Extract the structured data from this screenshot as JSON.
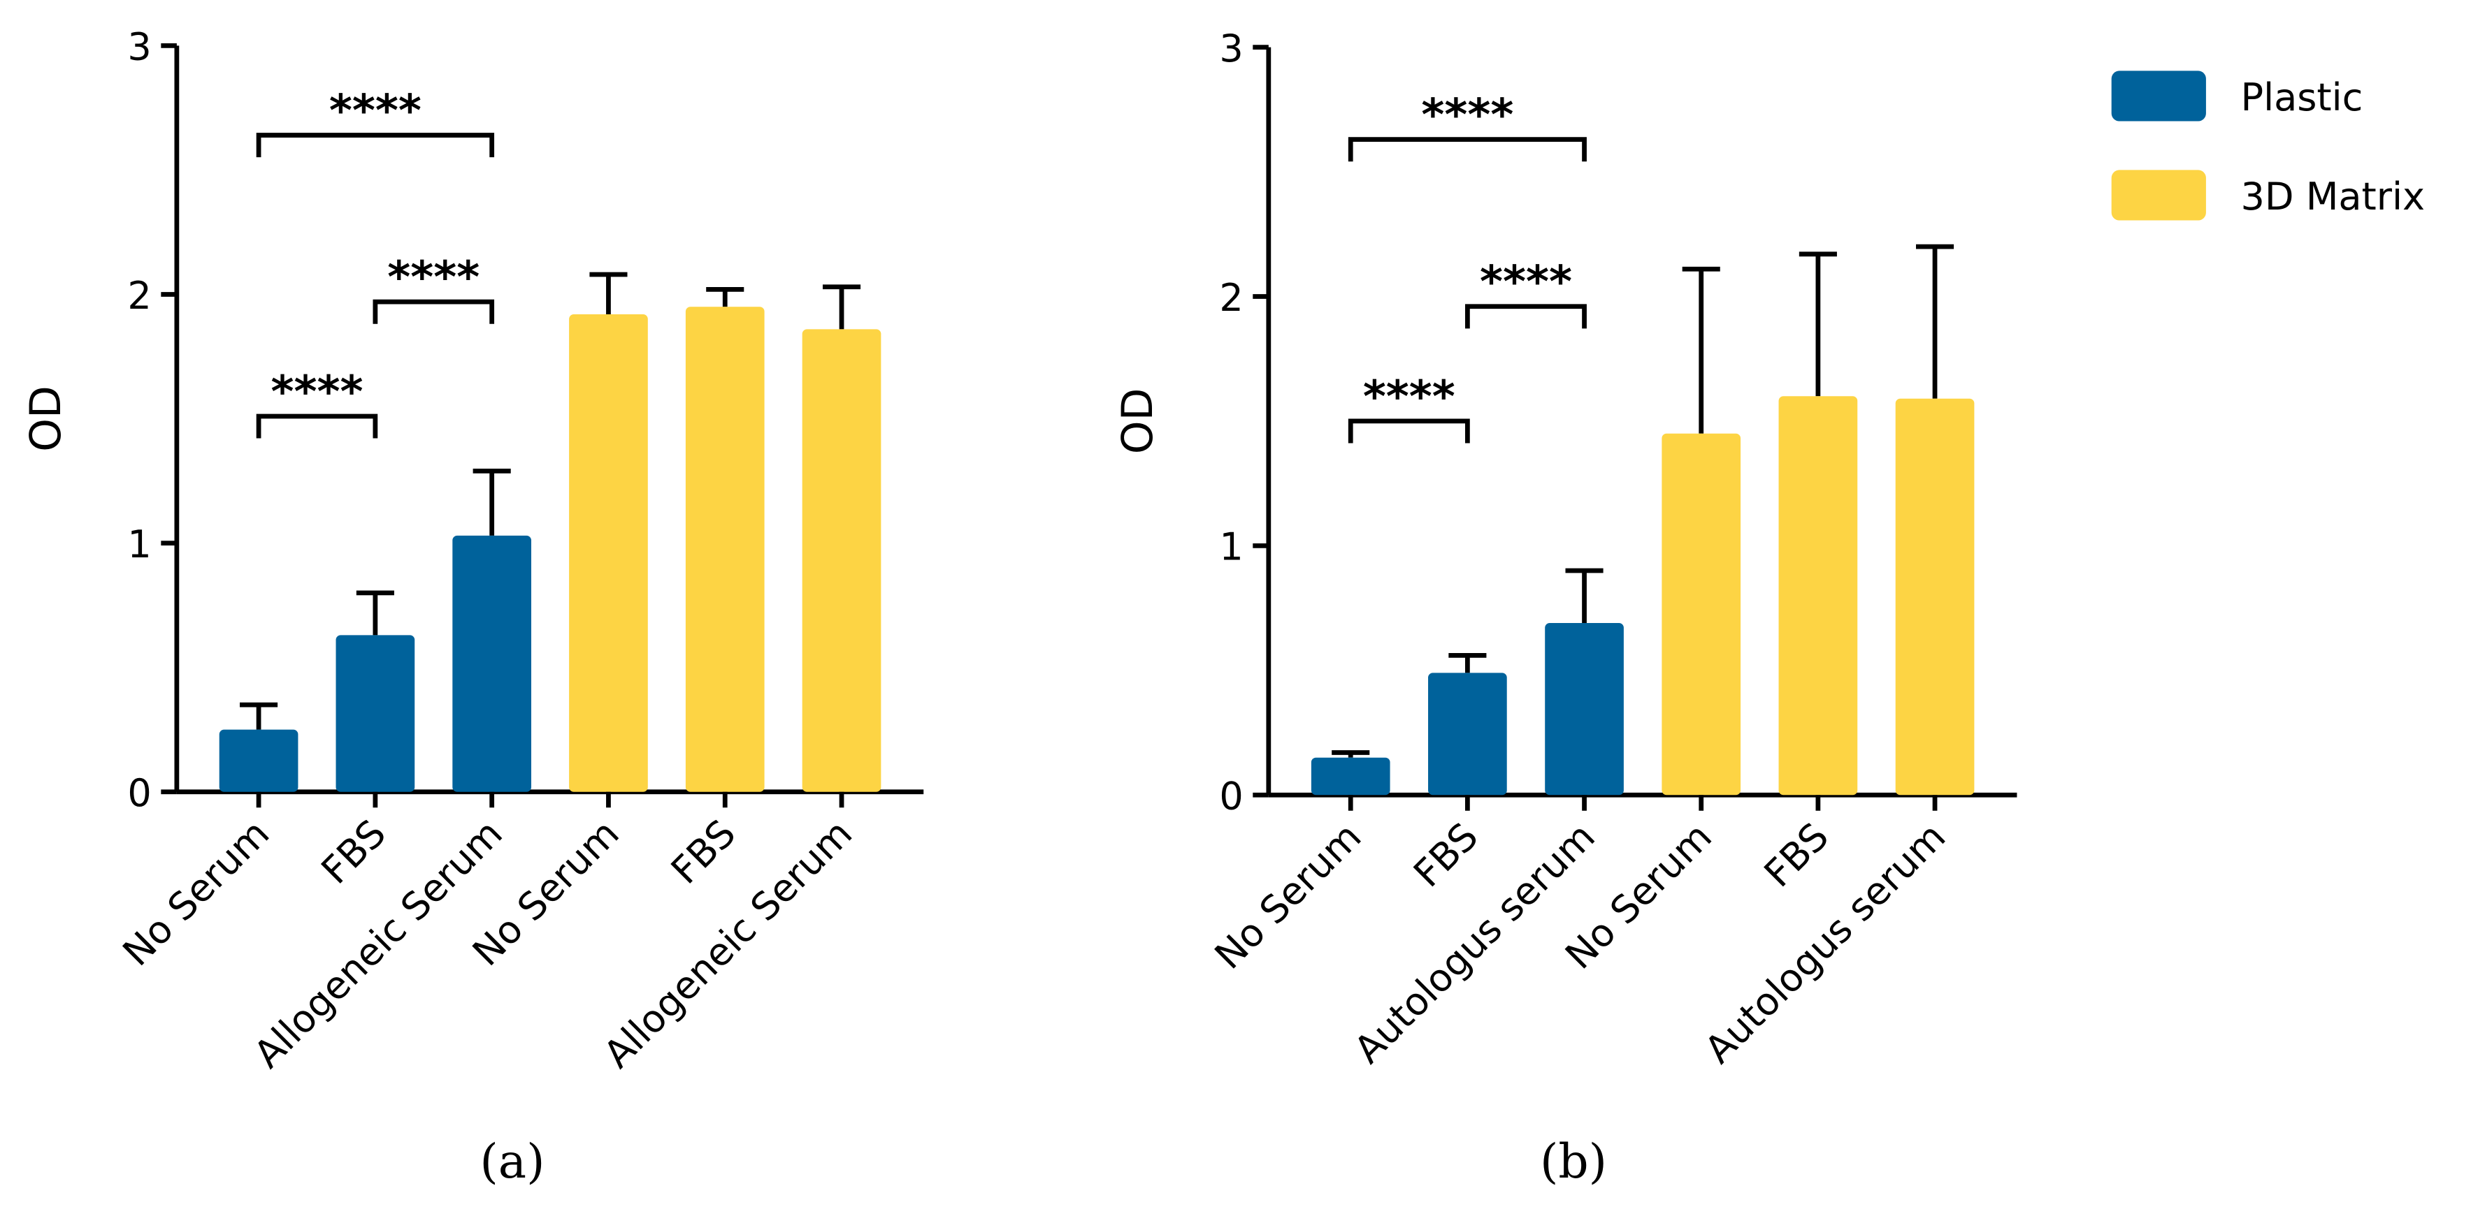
{
  "legend": [
    {
      "name": "Plastic",
      "color": "#00629b"
    },
    {
      "name": "3D Matrix",
      "color": "#fdd444"
    }
  ],
  "chart_data": [
    {
      "type": "bar",
      "panel_label": "(a)",
      "y_label": "OD",
      "categories": [
        "No Serum",
        "FBS",
        "Allogeneic Serum",
        "No Serum",
        "FBS",
        "Allogeneic Serum"
      ],
      "legend_group": [
        0,
        0,
        0,
        1,
        1,
        1
      ],
      "values": [
        0.25,
        0.63,
        1.03,
        1.92,
        1.95,
        1.86
      ],
      "errors": [
        0.1,
        0.17,
        0.26,
        0.16,
        0.07,
        0.17
      ],
      "ylim": [
        0,
        3
      ],
      "yticks": [
        0,
        1,
        2,
        3
      ],
      "annotations": [
        {
          "text": "****",
          "from": 0,
          "to": 2,
          "y": 2.64
        },
        {
          "text": "****",
          "from": 1,
          "to": 2,
          "y": 1.97
        },
        {
          "text": "****",
          "from": 0,
          "to": 1,
          "y": 1.51
        }
      ]
    },
    {
      "type": "bar",
      "panel_label": "(b)",
      "y_label": "OD",
      "categories": [
        "No Serum",
        "FBS",
        "Autologus serum",
        "No Serum",
        "FBS",
        "Autologus serum"
      ],
      "legend_group": [
        0,
        0,
        0,
        1,
        1,
        1
      ],
      "values": [
        0.15,
        0.49,
        0.69,
        1.45,
        1.6,
        1.59
      ],
      "errors": [
        0.02,
        0.07,
        0.21,
        0.66,
        0.57,
        0.61
      ],
      "ylim": [
        0,
        3
      ],
      "yticks": [
        0,
        1,
        2,
        3
      ],
      "annotations": [
        {
          "text": "****",
          "from": 0,
          "to": 2,
          "y": 2.63
        },
        {
          "text": "****",
          "from": 1,
          "to": 2,
          "y": 1.96
        },
        {
          "text": "****",
          "from": 0,
          "to": 1,
          "y": 1.5
        }
      ]
    }
  ]
}
